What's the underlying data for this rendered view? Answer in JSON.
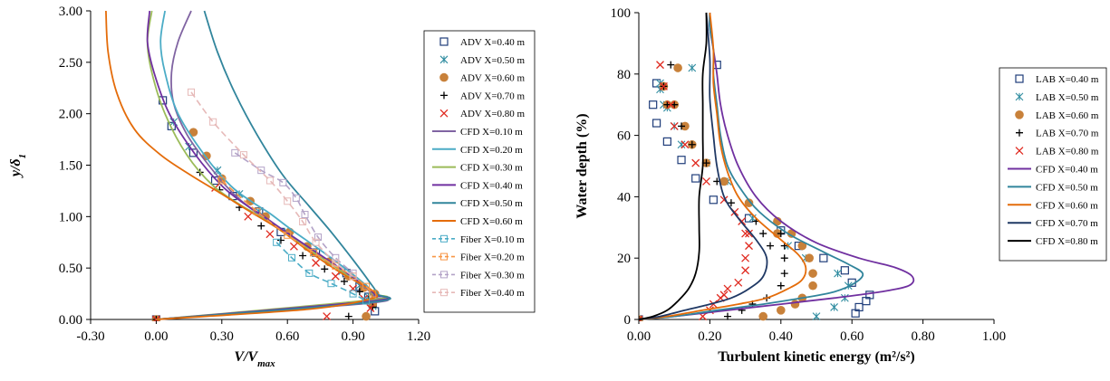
{
  "chart_data": [
    {
      "type": "scatter",
      "xlabel": "V/V",
      "xlabel_sub": "max",
      "ylabel": "y/δ",
      "ylabel_sub": "1",
      "xlim": [
        -0.3,
        1.2
      ],
      "ylim": [
        0.0,
        3.0
      ],
      "x_ticks": [
        "-0.30",
        "0.00",
        "0.30",
        "0.60",
        "0.90",
        "1.20"
      ],
      "y_ticks": [
        "0.00",
        "0.50",
        "1.00",
        "1.50",
        "2.00",
        "2.50",
        "3.00"
      ],
      "legend_position": "right",
      "grid": false,
      "series": [
        {
          "name": "ADV X=0.40 m",
          "marker": "square-open",
          "color": "#1f3d7a",
          "x": [
            0.0,
            0.03,
            0.07,
            0.17,
            0.27,
            0.35,
            0.47,
            0.57,
            0.73,
            0.87,
            0.93,
            0.97,
            0.99,
            1.0
          ],
          "y": [
            0.0,
            2.13,
            1.88,
            1.62,
            1.35,
            1.2,
            1.05,
            0.85,
            0.65,
            0.45,
            0.32,
            0.22,
            0.15,
            0.08
          ]
        },
        {
          "name": "ADV X=0.50 m",
          "marker": "asterisk",
          "color": "#2f8ca0",
          "x": [
            0.0,
            0.08,
            0.15,
            0.28,
            0.38,
            0.47,
            0.6,
            0.72,
            0.85,
            0.93,
            0.97,
            0.99
          ],
          "y": [
            0.0,
            1.92,
            1.68,
            1.45,
            1.22,
            1.05,
            0.85,
            0.65,
            0.47,
            0.33,
            0.22,
            0.13
          ]
        },
        {
          "name": "ADV X=0.60 m",
          "marker": "circle-filled",
          "color": "#c8813a",
          "x": [
            0.0,
            0.17,
            0.23,
            0.3,
            0.43,
            0.5,
            0.61,
            0.69,
            0.79,
            0.88,
            0.95,
            1.0,
            0.99,
            0.96
          ],
          "y": [
            0.0,
            1.82,
            1.59,
            1.37,
            1.15,
            1.0,
            0.85,
            0.71,
            0.56,
            0.42,
            0.31,
            0.25,
            0.15,
            0.03
          ]
        },
        {
          "name": "ADV X=0.70 m",
          "marker": "plus",
          "color": "#000000",
          "x": [
            0.0,
            0.2,
            0.29,
            0.38,
            0.48,
            0.57,
            0.67,
            0.77,
            0.86,
            0.93,
            0.97,
            0.99,
            0.88
          ],
          "y": [
            0.0,
            1.43,
            1.26,
            1.09,
            0.91,
            0.77,
            0.62,
            0.49,
            0.37,
            0.27,
            0.19,
            0.12,
            0.03
          ]
        },
        {
          "name": "ADV X=0.80 m",
          "marker": "x",
          "color": "#e02a20",
          "x": [
            0.0,
            0.27,
            0.42,
            0.52,
            0.63,
            0.73,
            0.82,
            0.9,
            0.95,
            0.98,
            0.78
          ],
          "y": [
            0.0,
            1.28,
            1.0,
            0.83,
            0.71,
            0.55,
            0.42,
            0.3,
            0.2,
            0.11,
            0.03
          ]
        },
        {
          "name": "CFD X=0.10 m",
          "marker": "line",
          "color": "#8064a2",
          "x": [
            0.16,
            0.1,
            0.07,
            0.08,
            0.14,
            0.24,
            0.34,
            0.42,
            0.5,
            0.62,
            0.76,
            0.88,
            0.96,
            1.0,
            0.98,
            0.0
          ],
          "y": [
            3.0,
            2.7,
            2.4,
            2.1,
            1.8,
            1.5,
            1.25,
            1.1,
            0.98,
            0.8,
            0.6,
            0.42,
            0.3,
            0.22,
            0.16,
            0.0
          ]
        },
        {
          "name": "CFD X=0.20 m",
          "marker": "line",
          "color": "#4bacc6",
          "x": [
            0.04,
            0.02,
            0.04,
            0.1,
            0.22,
            0.34,
            0.44,
            0.52,
            0.62,
            0.76,
            0.88,
            0.96,
            1.0,
            0.99,
            0.0
          ],
          "y": [
            3.0,
            2.7,
            2.4,
            2.0,
            1.6,
            1.3,
            1.14,
            1.03,
            0.87,
            0.66,
            0.47,
            0.33,
            0.24,
            0.18,
            0.0
          ]
        },
        {
          "name": "CFD X=0.30 m",
          "marker": "line",
          "color": "#9bbb59",
          "x": [
            -0.02,
            -0.04,
            -0.02,
            0.04,
            0.14,
            0.26,
            0.38,
            0.46,
            0.56,
            0.7,
            0.84,
            0.94,
            0.99,
            0.98,
            0.0
          ],
          "y": [
            3.0,
            2.7,
            2.4,
            2.0,
            1.6,
            1.3,
            1.12,
            1.02,
            0.88,
            0.68,
            0.48,
            0.34,
            0.25,
            0.19,
            0.0
          ]
        },
        {
          "name": "CFD X=0.40 m",
          "marker": "line",
          "color": "#7030a0",
          "x": [
            -0.03,
            -0.04,
            -0.01,
            0.06,
            0.18,
            0.3,
            0.4,
            0.48,
            0.58,
            0.72,
            0.86,
            0.95,
            1.0,
            0.99,
            0.0
          ],
          "y": [
            3.0,
            2.7,
            2.4,
            2.0,
            1.6,
            1.3,
            1.13,
            1.02,
            0.87,
            0.67,
            0.47,
            0.33,
            0.24,
            0.18,
            0.0
          ]
        },
        {
          "name": "CFD X=0.50 m",
          "marker": "line",
          "color": "#31859c",
          "x": [
            0.22,
            0.28,
            0.36,
            0.46,
            0.58,
            0.7,
            0.8,
            0.9,
            0.97,
            1.01,
            0.99,
            0.0
          ],
          "y": [
            3.0,
            2.6,
            2.2,
            1.8,
            1.4,
            1.1,
            0.85,
            0.58,
            0.38,
            0.25,
            0.17,
            0.0
          ]
        },
        {
          "name": "CFD X=0.60 m",
          "marker": "line",
          "color": "#e46c0a",
          "x": [
            -0.23,
            -0.22,
            -0.18,
            -0.1,
            0.02,
            0.16,
            0.3,
            0.42,
            0.56,
            0.7,
            0.84,
            0.94,
            1.0,
            0.98,
            0.7,
            0.0
          ],
          "y": [
            3.0,
            2.6,
            2.2,
            1.85,
            1.6,
            1.4,
            1.22,
            1.06,
            0.88,
            0.66,
            0.46,
            0.34,
            0.26,
            0.2,
            0.1,
            0.0
          ]
        },
        {
          "name": "Fiber X=0.10 m",
          "marker": "dash-square",
          "color": "#4bacc6",
          "x": [
            0.55,
            0.62,
            0.7,
            0.8,
            0.9,
            0.96
          ],
          "y": [
            0.75,
            0.6,
            0.45,
            0.35,
            0.25,
            0.18
          ]
        },
        {
          "name": "Fiber X=0.20 m",
          "marker": "dash-square",
          "color": "#f79646",
          "x": [
            0.3,
            0.46,
            0.6,
            0.72,
            0.82,
            0.9,
            0.96,
            0.99
          ],
          "y": [
            1.35,
            1.05,
            0.82,
            0.65,
            0.52,
            0.42,
            0.32,
            0.25
          ]
        },
        {
          "name": "Fiber X=0.30 m",
          "marker": "dash-square",
          "color": "#b3a2c7",
          "x": [
            0.36,
            0.48,
            0.58,
            0.64,
            0.68,
            0.74,
            0.82,
            0.9
          ],
          "y": [
            1.62,
            1.45,
            1.33,
            1.18,
            1.02,
            0.8,
            0.6,
            0.45
          ]
        },
        {
          "name": "Fiber X=0.40 m",
          "marker": "dash-square",
          "color": "#e6b9b8",
          "x": [
            0.16,
            0.26,
            0.4,
            0.52,
            0.6,
            0.67,
            0.73,
            0.82,
            0.9
          ],
          "y": [
            2.21,
            1.92,
            1.6,
            1.35,
            1.15,
            0.95,
            0.75,
            0.55,
            0.42
          ]
        }
      ]
    },
    {
      "type": "scatter",
      "xlabel": "Turbulent kinetic energy (m²/s²)",
      "ylabel": "Water depth (%)",
      "xlim": [
        0.0,
        1.0
      ],
      "ylim": [
        0,
        100
      ],
      "x_ticks": [
        "0.00",
        "0.20",
        "0.40",
        "0.60",
        "0.80",
        "1.00"
      ],
      "y_ticks": [
        "0",
        "20",
        "40",
        "60",
        "80",
        "100"
      ],
      "legend_position": "right",
      "grid": false,
      "series": [
        {
          "name": "LAB X=0.40 m",
          "marker": "square-open",
          "color": "#1f3d7a",
          "x": [
            0.0,
            0.65,
            0.64,
            0.62,
            0.61,
            0.6,
            0.58,
            0.52,
            0.45,
            0.4,
            0.31,
            0.21,
            0.16,
            0.12,
            0.08,
            0.05,
            0.04,
            0.05,
            0.22
          ],
          "y": [
            0,
            8,
            6,
            4,
            2,
            12,
            16,
            20,
            24,
            29,
            33,
            39,
            46,
            52,
            58,
            64,
            70,
            77,
            83
          ]
        },
        {
          "name": "LAB X=0.50 m",
          "marker": "asterisk",
          "color": "#2f8ca0",
          "x": [
            0.0,
            0.5,
            0.55,
            0.58,
            0.59,
            0.56,
            0.47,
            0.42,
            0.32,
            0.25,
            0.19,
            0.12,
            0.1,
            0.08,
            0.07,
            0.06,
            0.06,
            0.15
          ],
          "y": [
            0,
            1,
            4,
            7,
            11,
            15,
            20,
            24,
            33,
            45,
            51,
            57,
            63,
            69,
            70,
            75,
            77,
            82
          ]
        },
        {
          "name": "LAB X=0.60 m",
          "marker": "circle-filled",
          "color": "#c8813a",
          "x": [
            0.0,
            0.35,
            0.4,
            0.44,
            0.46,
            0.49,
            0.49,
            0.48,
            0.46,
            0.43,
            0.39,
            0.39,
            0.31,
            0.24,
            0.19,
            0.15,
            0.13,
            0.1,
            0.08,
            0.07,
            0.11
          ],
          "y": [
            0,
            1,
            3,
            5,
            7,
            11,
            15,
            20,
            24,
            28,
            32,
            28,
            38,
            45,
            51,
            57,
            63,
            70,
            70,
            76,
            82
          ]
        },
        {
          "name": "LAB X=0.70 m",
          "marker": "plus",
          "color": "#000000",
          "x": [
            0.0,
            0.25,
            0.29,
            0.32,
            0.36,
            0.4,
            0.41,
            0.41,
            0.41,
            0.4,
            0.37,
            0.35,
            0.33,
            0.26,
            0.22,
            0.19,
            0.15,
            0.12,
            0.1,
            0.08,
            0.07,
            0.09
          ],
          "y": [
            0,
            1,
            3,
            5,
            7,
            11,
            15,
            20,
            24,
            28,
            24,
            28,
            32,
            38,
            45,
            51,
            57,
            63,
            70,
            70,
            76,
            83
          ]
        },
        {
          "name": "LAB X=0.80 m",
          "marker": "x",
          "color": "#e02a20",
          "x": [
            0.0,
            0.18,
            0.2,
            0.21,
            0.23,
            0.24,
            0.25,
            0.28,
            0.3,
            0.3,
            0.31,
            0.31,
            0.3,
            0.29,
            0.27,
            0.24,
            0.19,
            0.16,
            0.13,
            0.1,
            0.09,
            0.07,
            0.06
          ],
          "y": [
            0,
            1,
            3,
            5,
            7,
            8,
            10,
            12,
            16,
            20,
            24,
            28,
            28,
            32,
            35,
            39,
            45,
            51,
            57,
            63,
            70,
            76,
            83
          ]
        },
        {
          "name": "CFD X=0.40 m",
          "marker": "line",
          "color": "#7030a0",
          "x": [
            0.0,
            0.1,
            0.25,
            0.4,
            0.55,
            0.68,
            0.76,
            0.77,
            0.72,
            0.62,
            0.5,
            0.4,
            0.33,
            0.28,
            0.25,
            0.23,
            0.22,
            0.21,
            0.2,
            0.2
          ],
          "y": [
            0,
            1,
            3,
            5,
            7,
            9,
            11,
            14,
            17,
            20,
            25,
            32,
            40,
            50,
            60,
            70,
            80,
            88,
            95,
            100
          ]
        },
        {
          "name": "CFD X=0.50 m",
          "marker": "line",
          "color": "#31859c",
          "x": [
            0.0,
            0.1,
            0.22,
            0.35,
            0.46,
            0.55,
            0.61,
            0.63,
            0.59,
            0.52,
            0.42,
            0.34,
            0.29,
            0.25,
            0.23,
            0.22,
            0.21,
            0.21,
            0.2,
            0.2
          ],
          "y": [
            0,
            1,
            3,
            5,
            7,
            9,
            12,
            15,
            18,
            22,
            28,
            35,
            42,
            50,
            60,
            70,
            80,
            88,
            95,
            100
          ]
        },
        {
          "name": "CFD X=0.60 m",
          "marker": "line",
          "color": "#e46c0a",
          "x": [
            0.0,
            0.08,
            0.18,
            0.28,
            0.36,
            0.42,
            0.46,
            0.47,
            0.45,
            0.4,
            0.33,
            0.28,
            0.25,
            0.23,
            0.22,
            0.21,
            0.21,
            0.2
          ],
          "y": [
            0,
            1,
            3,
            5,
            7,
            10,
            13,
            17,
            21,
            26,
            33,
            40,
            48,
            57,
            67,
            77,
            88,
            100
          ]
        },
        {
          "name": "CFD X=0.70 m",
          "marker": "line",
          "color": "#1f3864",
          "x": [
            0.0,
            0.06,
            0.13,
            0.2,
            0.26,
            0.31,
            0.35,
            0.36,
            0.33,
            0.28,
            0.24,
            0.22,
            0.21,
            0.2,
            0.2,
            0.19
          ],
          "y": [
            0,
            1,
            3,
            5,
            7,
            10,
            14,
            20,
            26,
            33,
            40,
            50,
            60,
            72,
            85,
            100
          ]
        },
        {
          "name": "CFD X=0.80 m",
          "marker": "line",
          "color": "#000000",
          "x": [
            0.0,
            0.04,
            0.08,
            0.11,
            0.14,
            0.16,
            0.17,
            0.17,
            0.17,
            0.18,
            0.18,
            0.18,
            0.18,
            0.19,
            0.19
          ],
          "y": [
            0,
            1,
            3,
            6,
            10,
            15,
            22,
            30,
            40,
            50,
            60,
            70,
            80,
            90,
            100
          ]
        }
      ]
    }
  ]
}
